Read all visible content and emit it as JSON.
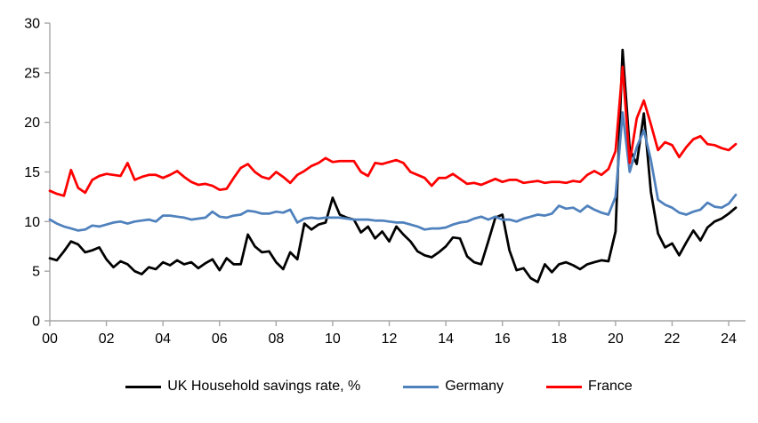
{
  "page": {
    "background": "#ffffff"
  },
  "axes": {
    "axis_color": "#a6a6a6",
    "tick_color": "#a6a6a6",
    "label_color": "#000000"
  },
  "chart_data": {
    "type": "line",
    "title": "",
    "xlabel": "",
    "ylabel": "",
    "x_unit": "quarterly",
    "x_start": "2000-Q1",
    "x_end": "2024-Q2",
    "grid": false,
    "legend_position": "bottom",
    "ylim": [
      0,
      30
    ],
    "y_ticks": [
      0,
      5,
      10,
      15,
      20,
      25,
      30
    ],
    "x_tick_labels": [
      "00",
      "02",
      "04",
      "06",
      "08",
      "10",
      "12",
      "14",
      "16",
      "18",
      "20",
      "22",
      "24"
    ],
    "series": [
      {
        "name": "UK Household savings rate, %",
        "color": "#000000",
        "values": [
          6.3,
          6.1,
          7.0,
          8.0,
          7.7,
          6.9,
          7.1,
          7.4,
          6.2,
          5.4,
          6.0,
          5.7,
          5.0,
          4.7,
          5.4,
          5.2,
          5.9,
          5.6,
          6.1,
          5.7,
          5.9,
          5.3,
          5.8,
          6.2,
          5.1,
          6.3,
          5.7,
          5.7,
          8.7,
          7.5,
          6.9,
          7.0,
          5.9,
          5.2,
          6.9,
          6.2,
          9.8,
          9.2,
          9.7,
          9.9,
          12.4,
          10.7,
          10.4,
          10.2,
          8.9,
          9.5,
          8.3,
          9.0,
          8.0,
          9.5,
          8.7,
          8.0,
          7.0,
          6.6,
          6.4,
          6.9,
          7.5,
          8.4,
          8.3,
          6.5,
          5.9,
          5.7,
          8.0,
          10.4,
          10.7,
          7.1,
          5.1,
          5.3,
          4.3,
          3.9,
          5.7,
          4.9,
          5.7,
          5.9,
          5.6,
          5.2,
          5.7,
          5.9,
          6.1,
          6.0,
          9.0,
          27.3,
          17.3,
          15.8,
          20.9,
          13.0,
          8.8,
          7.4,
          7.8,
          6.6,
          7.9,
          9.1,
          8.1,
          9.4,
          10.0,
          10.3,
          10.8,
          11.4
        ]
      },
      {
        "name": "Germany",
        "color": "#4f81bd",
        "values": [
          10.2,
          9.8,
          9.5,
          9.3,
          9.1,
          9.2,
          9.6,
          9.5,
          9.7,
          9.9,
          10.0,
          9.8,
          10.0,
          10.1,
          10.2,
          10.0,
          10.6,
          10.6,
          10.5,
          10.4,
          10.2,
          10.3,
          10.4,
          11.0,
          10.5,
          10.4,
          10.6,
          10.7,
          11.1,
          11.0,
          10.8,
          10.8,
          11.0,
          10.9,
          11.2,
          9.9,
          10.3,
          10.4,
          10.3,
          10.4,
          10.4,
          10.4,
          10.3,
          10.2,
          10.2,
          10.2,
          10.1,
          10.1,
          10.0,
          9.9,
          9.9,
          9.7,
          9.5,
          9.2,
          9.3,
          9.3,
          9.4,
          9.7,
          9.9,
          10.0,
          10.3,
          10.5,
          10.2,
          10.5,
          10.2,
          10.2,
          10.0,
          10.3,
          10.5,
          10.7,
          10.6,
          10.8,
          11.6,
          11.3,
          11.4,
          11.0,
          11.6,
          11.2,
          10.9,
          10.7,
          12.5,
          21.0,
          15.0,
          17.5,
          19.2,
          16.2,
          12.2,
          11.7,
          11.4,
          10.9,
          10.7,
          11.0,
          11.2,
          11.9,
          11.5,
          11.4,
          11.8,
          12.7
        ]
      },
      {
        "name": "France",
        "color": "#ff0000",
        "values": [
          13.1,
          12.8,
          12.6,
          15.2,
          13.4,
          12.9,
          14.2,
          14.6,
          14.8,
          14.7,
          14.6,
          15.9,
          14.2,
          14.5,
          14.7,
          14.7,
          14.4,
          14.7,
          15.1,
          14.5,
          14.0,
          13.7,
          13.8,
          13.6,
          13.2,
          13.3,
          14.4,
          15.4,
          15.8,
          15.0,
          14.5,
          14.3,
          15.0,
          14.5,
          13.9,
          14.7,
          15.1,
          15.6,
          15.9,
          16.4,
          16.0,
          16.1,
          16.1,
          16.1,
          15.0,
          14.6,
          15.9,
          15.8,
          16.0,
          16.2,
          15.9,
          15.0,
          14.7,
          14.4,
          13.6,
          14.4,
          14.4,
          14.8,
          14.3,
          13.8,
          13.9,
          13.7,
          14.0,
          14.3,
          14.0,
          14.2,
          14.2,
          13.9,
          14.0,
          14.1,
          13.9,
          14.0,
          14.0,
          13.9,
          14.1,
          14.0,
          14.7,
          15.1,
          14.7,
          15.3,
          17.1,
          25.6,
          15.9,
          20.4,
          22.2,
          19.8,
          17.2,
          18.0,
          17.7,
          16.5,
          17.5,
          18.3,
          18.6,
          17.8,
          17.7,
          17.4,
          17.2,
          17.8
        ]
      }
    ]
  },
  "legend": {
    "items_note": "labels bound from chart_data.series names"
  }
}
